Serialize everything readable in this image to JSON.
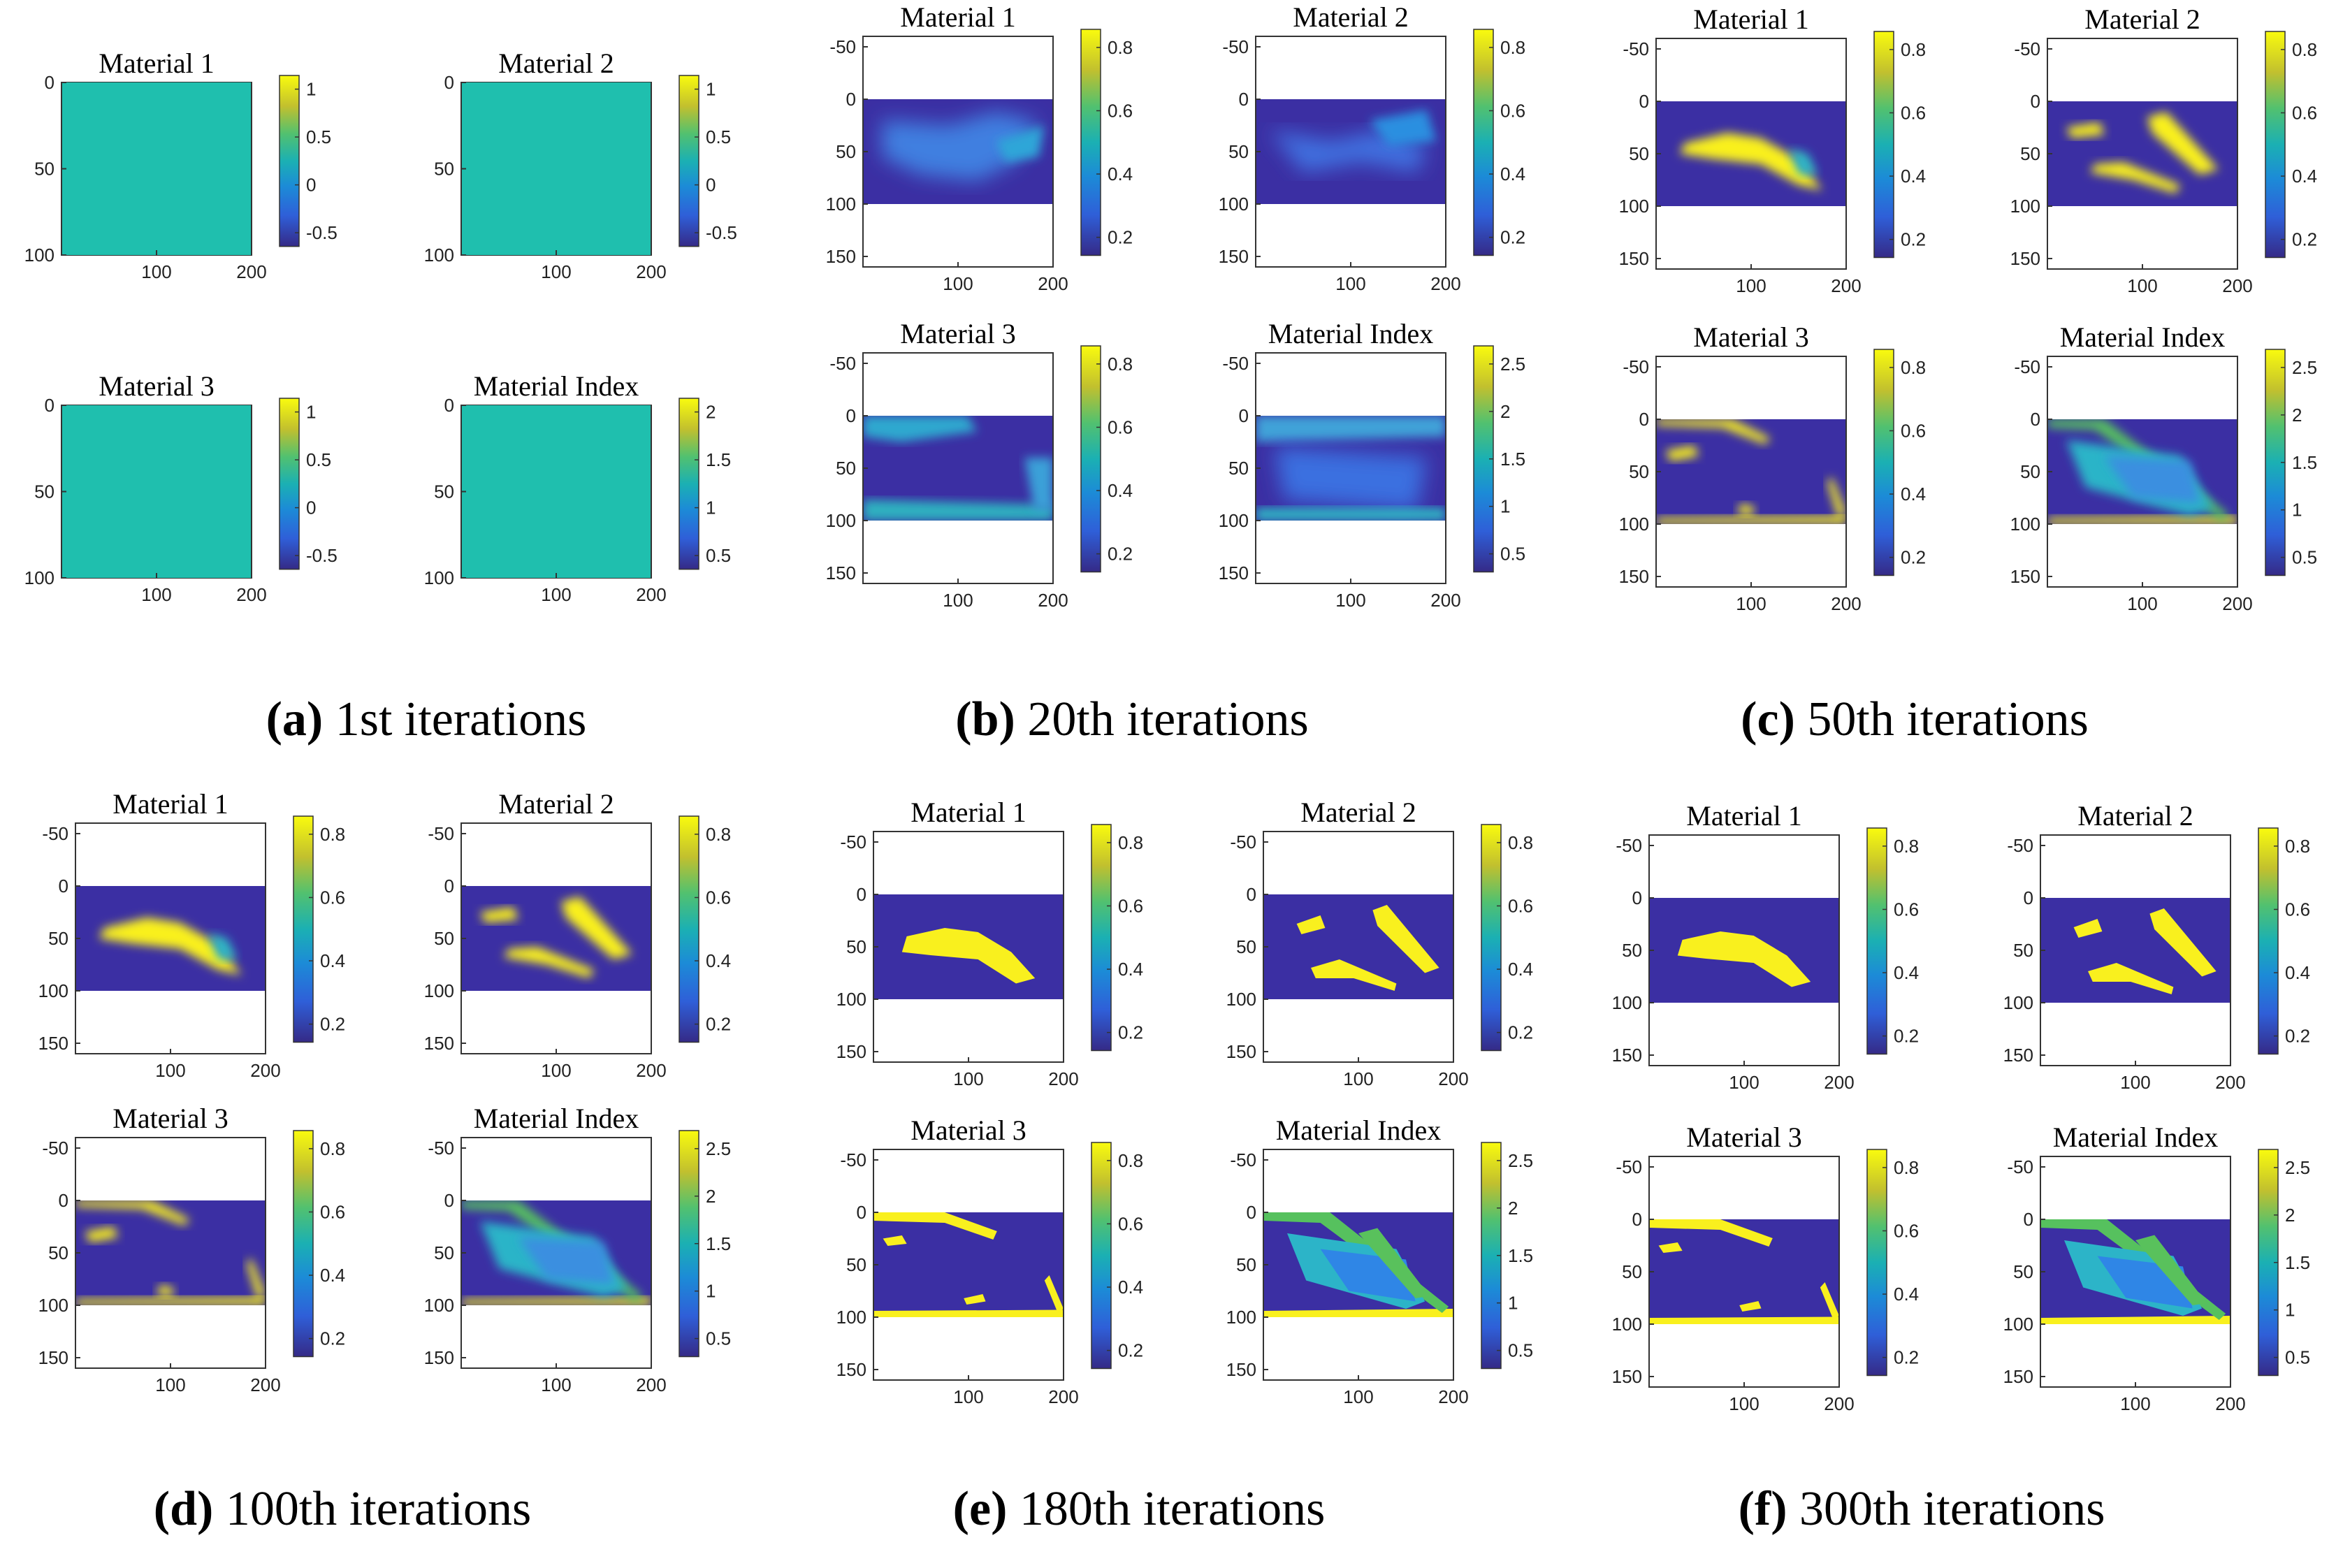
{
  "figure": {
    "captions": [
      {
        "letter": "a",
        "text": " 1st iterations"
      },
      {
        "letter": "b",
        "text": " 20th iterations"
      },
      {
        "letter": "c",
        "text": " 50th iterations"
      },
      {
        "letter": "d",
        "text": " 100th iterations"
      },
      {
        "letter": "e",
        "text": " 180th iterations"
      },
      {
        "letter": "f",
        "text": " 300th iterations"
      }
    ]
  },
  "colors": {
    "background": "#3b2fa3",
    "uniform": "#1fbfae",
    "yellow": "#f9f01e",
    "blue_mid": "#2f86e6",
    "cyan": "#2cb4c8",
    "green": "#56c15e"
  },
  "chart_data": [
    {
      "type": "heatmap",
      "group": "a",
      "iteration": 1,
      "panels": [
        {
          "title": "Material 1",
          "xticks": [
            100,
            200
          ],
          "yticks": [
            0,
            50,
            100
          ],
          "ylim": [
            0,
            100
          ],
          "colorbar": [
            1,
            0.5,
            0,
            -0.5
          ],
          "pattern": "uniform"
        },
        {
          "title": "Material 2",
          "xticks": [
            100,
            200
          ],
          "yticks": [
            0,
            50,
            100
          ],
          "ylim": [
            0,
            100
          ],
          "colorbar": [
            1,
            0.5,
            0,
            -0.5
          ],
          "pattern": "uniform"
        },
        {
          "title": "Material 3",
          "xticks": [
            100,
            200
          ],
          "yticks": [
            0,
            50,
            100
          ],
          "ylim": [
            0,
            100
          ],
          "colorbar": [
            1,
            0.5,
            0,
            -0.5
          ],
          "pattern": "uniform"
        },
        {
          "title": "Material Index",
          "xticks": [
            100,
            200
          ],
          "yticks": [
            0,
            50,
            100
          ],
          "ylim": [
            0,
            100
          ],
          "colorbar": [
            2,
            1.5,
            1,
            0.5
          ],
          "pattern": "uniform"
        }
      ]
    },
    {
      "type": "heatmap",
      "group": "b",
      "iteration": 20,
      "panels": [
        {
          "title": "Material 1",
          "xticks": [
            100,
            200
          ],
          "yticks": [
            -50,
            0,
            50,
            100,
            150
          ],
          "ylim": [
            -60,
            160
          ],
          "colorbar": [
            0.8,
            0.6,
            0.4,
            0.2
          ],
          "pattern": "m1_blur"
        },
        {
          "title": "Material 2",
          "xticks": [
            100,
            200
          ],
          "yticks": [
            -50,
            0,
            50,
            100,
            150
          ],
          "ylim": [
            -60,
            160
          ],
          "colorbar": [
            0.8,
            0.6,
            0.4,
            0.2
          ],
          "pattern": "m2_blur"
        },
        {
          "title": "Material 3",
          "xticks": [
            100,
            200
          ],
          "yticks": [
            -50,
            0,
            50,
            100,
            150
          ],
          "ylim": [
            -60,
            160
          ],
          "colorbar": [
            0.8,
            0.6,
            0.4,
            0.2
          ],
          "pattern": "m3_blur"
        },
        {
          "title": "Material Index",
          "xticks": [
            100,
            200
          ],
          "yticks": [
            -50,
            0,
            50,
            100,
            150
          ],
          "ylim": [
            -60,
            160
          ],
          "colorbar": [
            2.5,
            2,
            1.5,
            1,
            0.5
          ],
          "pattern": "idx_blur"
        }
      ]
    },
    {
      "type": "heatmap",
      "group": "c",
      "iteration": 50,
      "panels": [
        {
          "title": "Material 1",
          "xticks": [
            100,
            200
          ],
          "yticks": [
            -50,
            0,
            50,
            100,
            150
          ],
          "ylim": [
            -60,
            160
          ],
          "colorbar": [
            0.8,
            0.6,
            0.4,
            0.2
          ],
          "pattern": "m1_soft"
        },
        {
          "title": "Material 2",
          "xticks": [
            100,
            200
          ],
          "yticks": [
            -50,
            0,
            50,
            100,
            150
          ],
          "ylim": [
            -60,
            160
          ],
          "colorbar": [
            0.8,
            0.6,
            0.4,
            0.2
          ],
          "pattern": "m2_soft"
        },
        {
          "title": "Material 3",
          "xticks": [
            100,
            200
          ],
          "yticks": [
            -50,
            0,
            50,
            100,
            150
          ],
          "ylim": [
            -60,
            160
          ],
          "colorbar": [
            0.8,
            0.6,
            0.4,
            0.2
          ],
          "pattern": "m3_soft"
        },
        {
          "title": "Material Index",
          "xticks": [
            100,
            200
          ],
          "yticks": [
            -50,
            0,
            50,
            100,
            150
          ],
          "ylim": [
            -60,
            160
          ],
          "colorbar": [
            2.5,
            2,
            1.5,
            1,
            0.5
          ],
          "pattern": "idx_soft"
        }
      ]
    },
    {
      "type": "heatmap",
      "group": "d",
      "iteration": 100,
      "panels": [
        {
          "title": "Material 1",
          "xticks": [
            100,
            200
          ],
          "yticks": [
            -50,
            0,
            50,
            100,
            150
          ],
          "ylim": [
            -60,
            160
          ],
          "colorbar": [
            0.8,
            0.6,
            0.4,
            0.2
          ],
          "pattern": "m1_soft"
        },
        {
          "title": "Material 2",
          "xticks": [
            100,
            200
          ],
          "yticks": [
            -50,
            0,
            50,
            100,
            150
          ],
          "ylim": [
            -60,
            160
          ],
          "colorbar": [
            0.8,
            0.6,
            0.4,
            0.2
          ],
          "pattern": "m2_soft"
        },
        {
          "title": "Material 3",
          "xticks": [
            100,
            200
          ],
          "yticks": [
            -50,
            0,
            50,
            100,
            150
          ],
          "ylim": [
            -60,
            160
          ],
          "colorbar": [
            0.8,
            0.6,
            0.4,
            0.2
          ],
          "pattern": "m3_soft"
        },
        {
          "title": "Material Index",
          "xticks": [
            100,
            200
          ],
          "yticks": [
            -50,
            0,
            50,
            100,
            150
          ],
          "ylim": [
            -60,
            160
          ],
          "colorbar": [
            2.5,
            2,
            1.5,
            1,
            0.5
          ],
          "pattern": "idx_soft"
        }
      ]
    },
    {
      "type": "heatmap",
      "group": "e",
      "iteration": 180,
      "panels": [
        {
          "title": "Material 1",
          "xticks": [
            100,
            200
          ],
          "yticks": [
            -50,
            0,
            50,
            100,
            150
          ],
          "ylim": [
            -60,
            160
          ],
          "colorbar": [
            0.8,
            0.6,
            0.4,
            0.2
          ],
          "pattern": "m1_sharp"
        },
        {
          "title": "Material 2",
          "xticks": [
            100,
            200
          ],
          "yticks": [
            -50,
            0,
            50,
            100,
            150
          ],
          "ylim": [
            -60,
            160
          ],
          "colorbar": [
            0.8,
            0.6,
            0.4,
            0.2
          ],
          "pattern": "m2_sharp"
        },
        {
          "title": "Material 3",
          "xticks": [
            100,
            200
          ],
          "yticks": [
            -50,
            0,
            50,
            100,
            150
          ],
          "ylim": [
            -60,
            160
          ],
          "colorbar": [
            0.8,
            0.6,
            0.4,
            0.2
          ],
          "pattern": "m3_sharp"
        },
        {
          "title": "Material Index",
          "xticks": [
            100,
            200
          ],
          "yticks": [
            -50,
            0,
            50,
            100,
            150
          ],
          "ylim": [
            -60,
            160
          ],
          "colorbar": [
            2.5,
            2,
            1.5,
            1,
            0.5
          ],
          "pattern": "idx_sharp"
        }
      ]
    },
    {
      "type": "heatmap",
      "group": "f",
      "iteration": 300,
      "panels": [
        {
          "title": "Material 1",
          "xticks": [
            100,
            200
          ],
          "yticks": [
            -50,
            0,
            50,
            100,
            150
          ],
          "ylim": [
            -60,
            160
          ],
          "colorbar": [
            0.8,
            0.6,
            0.4,
            0.2
          ],
          "pattern": "m1_sharp"
        },
        {
          "title": "Material 2",
          "xticks": [
            100,
            200
          ],
          "yticks": [
            -50,
            0,
            50,
            100,
            150
          ],
          "ylim": [
            -60,
            160
          ],
          "colorbar": [
            0.8,
            0.6,
            0.4,
            0.2
          ],
          "pattern": "m2_sharp"
        },
        {
          "title": "Material 3",
          "xticks": [
            100,
            200
          ],
          "yticks": [
            -50,
            0,
            50,
            100,
            150
          ],
          "ylim": [
            -60,
            160
          ],
          "colorbar": [
            0.8,
            0.6,
            0.4,
            0.2
          ],
          "pattern": "m3_sharp"
        },
        {
          "title": "Material Index",
          "xticks": [
            100,
            200
          ],
          "yticks": [
            -50,
            0,
            50,
            100,
            150
          ],
          "ylim": [
            -60,
            160
          ],
          "colorbar": [
            2.5,
            2,
            1.5,
            1,
            0.5
          ],
          "pattern": "idx_sharp"
        }
      ]
    }
  ]
}
